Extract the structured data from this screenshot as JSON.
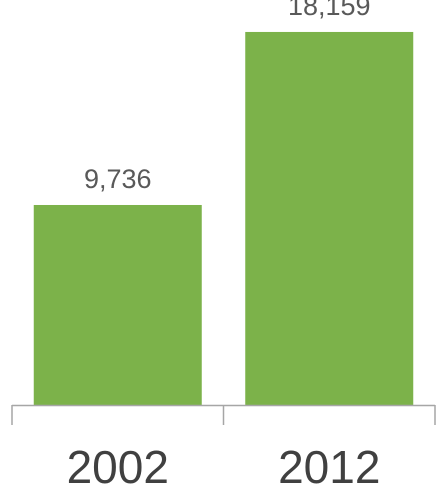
{
  "chart_data": {
    "type": "bar",
    "title": "",
    "xlabel": "",
    "ylabel": "",
    "categories": [
      "2002",
      "2012"
    ],
    "values": [
      9736,
      18159
    ],
    "value_labels": [
      "9,736",
      "18,159"
    ],
    "grid": false,
    "legend": "none",
    "colors": {
      "bar": "#7cb24a",
      "axis": "#a6a6a6",
      "data_label": "#595959",
      "tick_label": "#404040"
    }
  }
}
